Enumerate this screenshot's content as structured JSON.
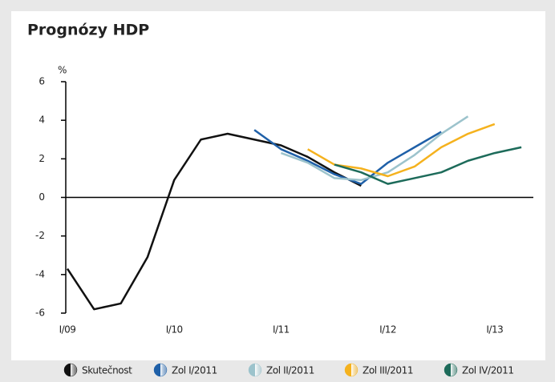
{
  "chart_data": {
    "type": "line",
    "title": "Prognózy HDP",
    "y_label": "%",
    "categories": [
      "I/09",
      null,
      null,
      null,
      "I/10",
      null,
      null,
      null,
      "I/11",
      null,
      null,
      null,
      "I/12",
      null,
      null,
      null,
      "I/13",
      null
    ],
    "series": [
      {
        "name": "Skutečnost",
        "color": "#111111",
        "values": [
          -3.7,
          -5.8,
          -5.5,
          -3.1,
          0.9,
          3.0,
          3.3,
          3.0,
          2.7,
          2.1,
          1.3,
          0.6,
          null,
          null,
          null,
          null,
          null,
          null
        ]
      },
      {
        "name": "Zol I/2011",
        "color": "#1f60a8",
        "values": [
          null,
          null,
          null,
          null,
          null,
          null,
          null,
          3.5,
          2.5,
          1.9,
          1.2,
          0.7,
          1.8,
          2.6,
          3.4,
          null,
          null,
          null
        ]
      },
      {
        "name": "Zol II/2011",
        "color": "#9cc3cc",
        "values": [
          null,
          null,
          null,
          null,
          null,
          null,
          null,
          null,
          2.3,
          1.8,
          1.0,
          0.9,
          1.3,
          2.2,
          3.3,
          4.2,
          null,
          null
        ]
      },
      {
        "name": "Zol III/2011",
        "color": "#f5b21e",
        "values": [
          null,
          null,
          null,
          null,
          null,
          null,
          null,
          null,
          null,
          2.5,
          1.7,
          1.5,
          1.1,
          1.6,
          2.6,
          3.3,
          3.8,
          null
        ]
      },
      {
        "name": "Zol IV/2011",
        "color": "#1d6b5a",
        "values": [
          null,
          null,
          null,
          null,
          null,
          null,
          null,
          null,
          null,
          null,
          1.7,
          1.3,
          0.7,
          1.0,
          1.3,
          1.9,
          2.3,
          2.6
        ]
      }
    ],
    "ylim": [
      -6,
      6
    ],
    "yticks": [
      -6,
      -4,
      -2,
      0,
      2,
      4,
      6
    ],
    "legend": "bottom"
  }
}
